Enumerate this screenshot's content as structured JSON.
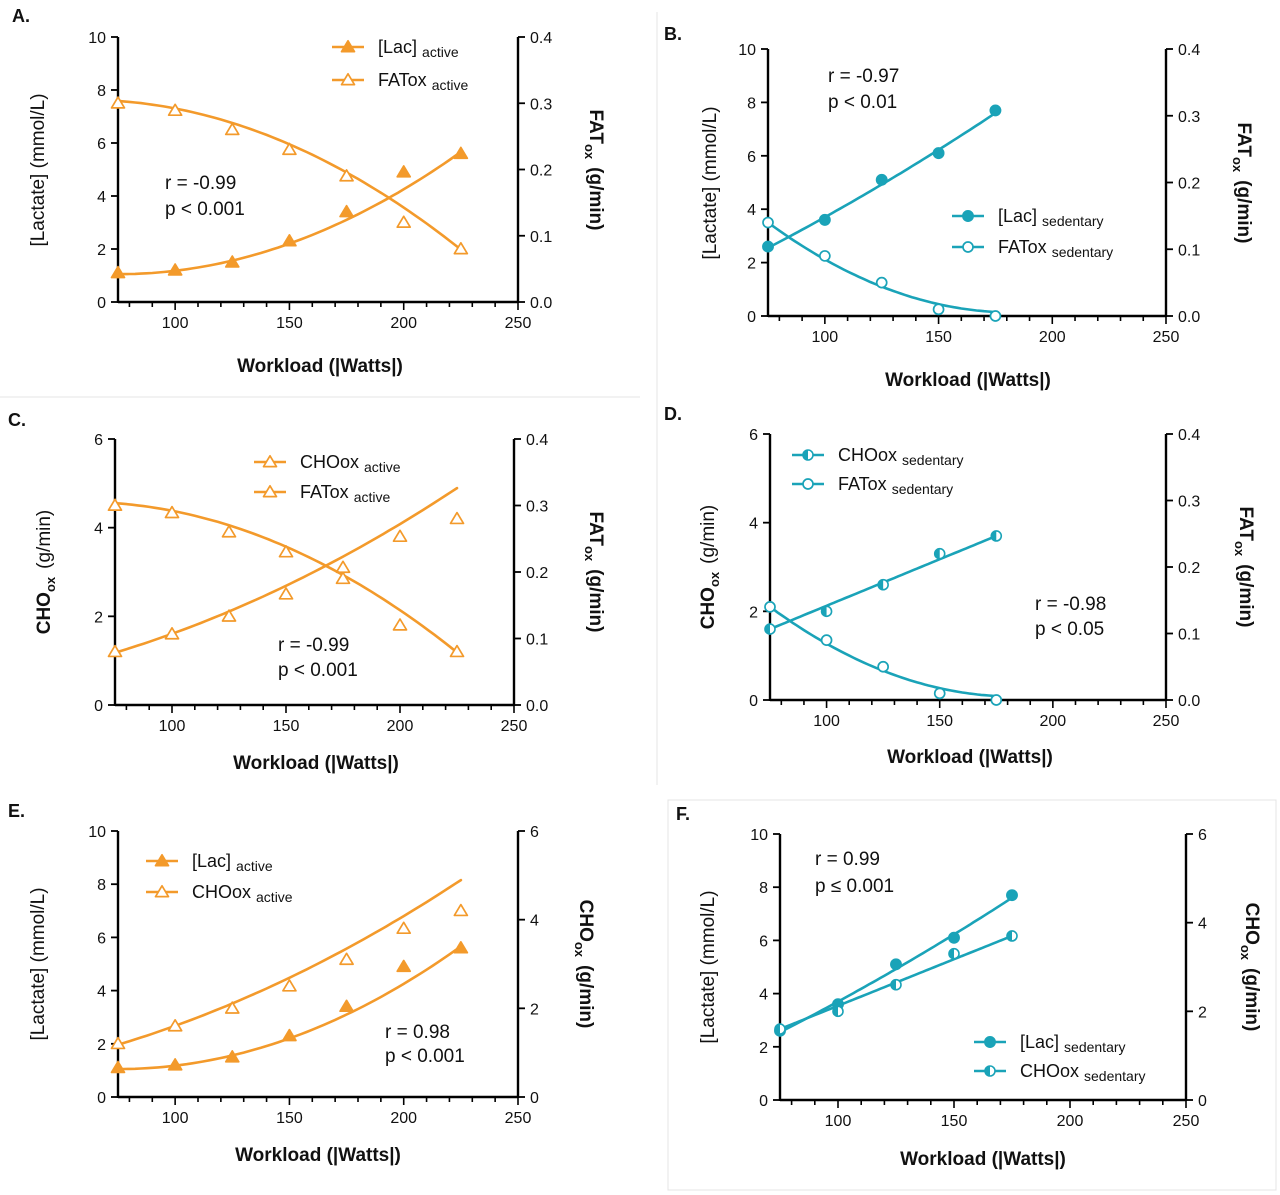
{
  "colors": {
    "orange": "#F39A2B",
    "teal": "#1AA3B8",
    "axis": "#000000",
    "text": "#111111"
  },
  "chart_data": [
    {
      "id": "A",
      "type": "line",
      "panel_label": "A.",
      "xlabel": "Workload (|Watts|)",
      "xlim": [
        75,
        250
      ],
      "xticks": [
        100,
        150,
        200,
        250
      ],
      "xtick_labels": [
        "100",
        "150",
        "200",
        "250"
      ],
      "ylabel_left": "[Lactate] (mmol/L)",
      "ylim_left": [
        0,
        10
      ],
      "yticks_left": [
        "0",
        "2",
        "4",
        "6",
        "8",
        "10"
      ],
      "ylabel_right_main": "FAT",
      "ylabel_right_sub": "ox",
      "ylabel_right_unit": "(g/min)",
      "ylim_right": [
        0,
        0.4
      ],
      "yticks_right": [
        "0.0",
        "0.1",
        "0.2",
        "0.3",
        "0.4"
      ],
      "annotation": [
        "r = -0.99",
        "p < 0.001"
      ],
      "series": [
        {
          "name": "[Lac]",
          "subscript": "active",
          "axis": "left",
          "marker": "triangle-filled",
          "color": "orange",
          "x": [
            75,
            100,
            125,
            150,
            175,
            200,
            225
          ],
          "y": [
            1.1,
            1.2,
            1.5,
            2.3,
            3.4,
            4.9,
            5.6
          ],
          "fit": [
            1.05,
            0.0,
            0.000205
          ]
        },
        {
          "name": "FATox",
          "subscript": "active",
          "axis": "right",
          "marker": "triangle-open",
          "color": "orange",
          "x": [
            75,
            100,
            125,
            150,
            175,
            200,
            225
          ],
          "y": [
            0.3,
            0.289,
            0.26,
            0.23,
            0.19,
            0.12,
            0.08
          ],
          "fit": [
            0.3035,
            -0.00025,
            -8.3e-06
          ]
        }
      ]
    },
    {
      "id": "B",
      "type": "line",
      "panel_label": "B.",
      "xlabel": "Workload (|Watts|)",
      "xlim": [
        75,
        250
      ],
      "xticks": [
        100,
        150,
        200,
        250
      ],
      "xtick_labels": [
        "100",
        "150",
        "200",
        "250"
      ],
      "ylabel_left": "[Lactate] (mmol/L)",
      "ylim_left": [
        0,
        10
      ],
      "yticks_left": [
        "0",
        "2",
        "4",
        "6",
        "8",
        "10"
      ],
      "ylabel_right_main": "FAT",
      "ylabel_right_sub": "ox",
      "ylabel_right_unit": "(g/min)",
      "ylim_right": [
        0,
        0.4
      ],
      "yticks_right": [
        "0.0",
        "0.1",
        "0.2",
        "0.3",
        "0.4"
      ],
      "annotation": [
        "r = -0.97",
        "p < 0.01"
      ],
      "series": [
        {
          "name": "[Lac]",
          "subscript": "sedentary",
          "axis": "left",
          "marker": "circle-filled",
          "color": "teal",
          "x": [
            75,
            100,
            125,
            150,
            175
          ],
          "y": [
            2.6,
            3.6,
            5.1,
            6.1,
            7.7
          ],
          "fit": [
            2.55,
            0.0445,
            6e-05
          ]
        },
        {
          "name": "FATox",
          "subscript": "sedentary",
          "axis": "right",
          "marker": "circle-open",
          "color": "teal",
          "x": [
            75,
            100,
            125,
            150,
            175
          ],
          "y": [
            0.14,
            0.09,
            0.05,
            0.01,
            0.0
          ],
          "fit": [
            0.14,
            -0.0025,
            1.16e-05
          ]
        }
      ]
    },
    {
      "id": "C",
      "type": "line",
      "panel_label": "C.",
      "xlabel": "Workload (|Watts|)",
      "xlim": [
        75,
        250
      ],
      "xticks": [
        100,
        150,
        200,
        250
      ],
      "xtick_labels": [
        "100",
        "150",
        "200",
        "250"
      ],
      "ylabel_left_main": "CHO",
      "ylabel_left_sub": "ox",
      "ylabel_left_unit": "(g/min)",
      "ylim_left": [
        0,
        6
      ],
      "yticks_left": [
        "0",
        "2",
        "4",
        "6"
      ],
      "ylabel_right_main": "FAT",
      "ylabel_right_sub": "ox",
      "ylabel_right_unit": "(g/min)",
      "ylim_right": [
        0,
        0.4
      ],
      "yticks_right": [
        "0.0",
        "0.1",
        "0.2",
        "0.3",
        "0.4"
      ],
      "annotation": [
        "r = -0.99",
        "p < 0.001"
      ],
      "series": [
        {
          "name": "CHOox",
          "subscript": "active",
          "axis": "left",
          "marker": "triangle-open",
          "color": "orange",
          "x": [
            75,
            100,
            125,
            150,
            175,
            200,
            225
          ],
          "y": [
            1.2,
            1.6,
            2.0,
            2.5,
            3.1,
            3.8,
            4.2
          ],
          "fit": [
            1.18,
            0.0155,
            6.17e-05
          ]
        },
        {
          "name": "FATox",
          "subscript": "active",
          "axis": "right",
          "marker": "triangle-open",
          "color": "orange",
          "x": [
            75,
            100,
            125,
            150,
            175,
            200,
            225
          ],
          "y": [
            0.3,
            0.289,
            0.26,
            0.23,
            0.19,
            0.12,
            0.08
          ],
          "fit": [
            0.3035,
            -0.00025,
            -8.3e-06
          ]
        }
      ]
    },
    {
      "id": "D",
      "type": "line",
      "panel_label": "D.",
      "xlabel": "Workload (|Watts|)",
      "xlim": [
        75,
        250
      ],
      "xticks": [
        100,
        150,
        200,
        250
      ],
      "xtick_labels": [
        "100",
        "150",
        "200",
        "250"
      ],
      "ylabel_left_main": "CHO",
      "ylabel_left_sub": "ox",
      "ylabel_left_unit": "(g/min)",
      "ylim_left": [
        0,
        6
      ],
      "yticks_left": [
        "0",
        "2",
        "4",
        "6"
      ],
      "ylabel_right_main": "FAT",
      "ylabel_right_sub": "ox",
      "ylabel_right_unit": "(g/min)",
      "ylim_right": [
        0,
        0.4
      ],
      "yticks_right": [
        "0.0",
        "0.1",
        "0.2",
        "0.3",
        "0.4"
      ],
      "annotation": [
        "r = -0.98",
        "p < 0.05"
      ],
      "series": [
        {
          "name": "CHOox",
          "subscript": "sedentary",
          "axis": "left",
          "marker": "circle-half",
          "color": "teal",
          "x": [
            75,
            100,
            125,
            150,
            175
          ],
          "y": [
            1.6,
            2.0,
            2.6,
            3.3,
            3.7
          ],
          "fit": [
            1.6,
            0.021,
            0
          ]
        },
        {
          "name": "FATox",
          "subscript": "sedentary",
          "axis": "right",
          "marker": "circle-open",
          "color": "teal",
          "x": [
            75,
            100,
            125,
            150,
            175
          ],
          "y": [
            0.14,
            0.09,
            0.05,
            0.01,
            0.0
          ],
          "fit": [
            0.14,
            -0.0025,
            1.16e-05
          ]
        }
      ]
    },
    {
      "id": "E",
      "type": "line",
      "panel_label": "E.",
      "xlabel": "Workload (|Watts|)",
      "xlim": [
        75,
        250
      ],
      "xticks": [
        100,
        150,
        200,
        250
      ],
      "xtick_labels": [
        "100",
        "150",
        "200",
        "250"
      ],
      "ylabel_left": "[Lactate] (mmol/L)",
      "ylim_left": [
        0,
        10
      ],
      "yticks_left": [
        "0",
        "2",
        "4",
        "6",
        "8",
        "10"
      ],
      "ylabel_right_main": "CHO",
      "ylabel_right_sub": "ox",
      "ylabel_right_unit": "(g/min)",
      "ylim_right": [
        0,
        6
      ],
      "yticks_right": [
        "0",
        "2",
        "4",
        "6"
      ],
      "annotation": [
        "r = 0.98",
        "p < 0.001"
      ],
      "series": [
        {
          "name": "[Lac]",
          "subscript": "active",
          "axis": "left",
          "marker": "triangle-filled",
          "color": "orange",
          "x": [
            75,
            100,
            125,
            150,
            175,
            200,
            225
          ],
          "y": [
            1.1,
            1.2,
            1.5,
            2.3,
            3.4,
            4.9,
            5.6
          ],
          "fit": [
            1.05,
            0.0,
            0.000205
          ]
        },
        {
          "name": "CHOox",
          "subscript": "active",
          "axis": "right",
          "marker": "triangle-open",
          "color": "orange",
          "x": [
            75,
            100,
            125,
            150,
            175,
            200,
            225
          ],
          "y": [
            1.2,
            1.6,
            2.0,
            2.5,
            3.1,
            3.8,
            4.2
          ],
          "fit": [
            1.18,
            0.0155,
            6.17e-05
          ]
        }
      ]
    },
    {
      "id": "F",
      "type": "line",
      "panel_label": "F.",
      "xlabel": "Workload (|Watts|)",
      "xlim": [
        75,
        250
      ],
      "xticks": [
        100,
        150,
        200,
        250
      ],
      "xtick_labels": [
        "100",
        "150",
        "200",
        "250"
      ],
      "ylabel_left": "[Lactate] (mmol/L)",
      "ylim_left": [
        0,
        10
      ],
      "yticks_left": [
        "0",
        "2",
        "4",
        "6",
        "8",
        "10"
      ],
      "ylabel_right_main": "CHO",
      "ylabel_right_sub": "ox",
      "ylabel_right_unit": "(g/min)",
      "ylim_right": [
        0,
        6
      ],
      "yticks_right": [
        "0",
        "2",
        "4",
        "6"
      ],
      "annotation": [
        "r = 0.99",
        "p ≤ 0.001"
      ],
      "series": [
        {
          "name": "[Lac]",
          "subscript": "sedentary",
          "axis": "left",
          "marker": "circle-filled",
          "color": "teal",
          "x": [
            75,
            100,
            125,
            150,
            175
          ],
          "y": [
            2.6,
            3.6,
            5.1,
            6.1,
            7.7
          ],
          "fit": [
            2.55,
            0.0445,
            6e-05
          ]
        },
        {
          "name": "CHOox",
          "subscript": "sedentary",
          "axis": "right",
          "marker": "circle-half",
          "color": "teal",
          "x": [
            75,
            100,
            125,
            150,
            175
          ],
          "y": [
            1.6,
            2.0,
            2.6,
            3.3,
            3.7
          ],
          "fit": [
            1.6,
            0.021,
            0
          ]
        }
      ]
    }
  ]
}
